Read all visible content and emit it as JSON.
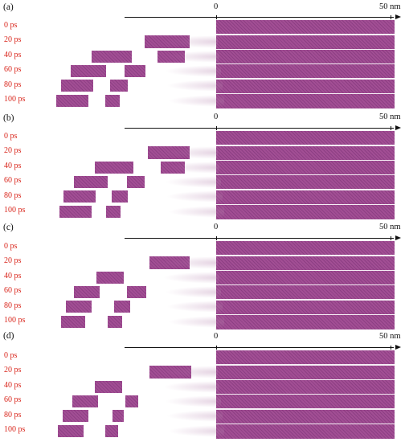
{
  "figure": {
    "panels": [
      {
        "label": "(a)",
        "axis": {
          "tick_zero": "0",
          "tick_end": "50 nm"
        },
        "rows": [
          "0 ps",
          "20 ps",
          "40 ps",
          "60 ps",
          "80 ps",
          "100 ps"
        ]
      },
      {
        "label": "(b)",
        "axis": {
          "tick_zero": "0",
          "tick_end": "50 nm"
        },
        "rows": [
          "0 ps",
          "20 ps",
          "40 ps",
          "60 ps",
          "80 ps",
          "100 ps"
        ]
      },
      {
        "label": "(c)",
        "axis": {
          "tick_zero": "0",
          "tick_end": "50 nm"
        },
        "rows": [
          "0 ps",
          "20 ps",
          "40 ps",
          "60 ps",
          "80 ps",
          "100 ps"
        ]
      },
      {
        "label": "(d)",
        "axis": {
          "tick_zero": "0",
          "tick_end": "50 nm"
        },
        "rows": [
          "0 ps",
          "20 ps",
          "40 ps",
          "60 ps",
          "80 ps",
          "100 ps"
        ]
      }
    ],
    "colors": {
      "material": "#a24e94",
      "material_dark": "#8c3f83",
      "particles": "#b07aa8",
      "label_red": "#d9261c",
      "axis": "#111111"
    }
  }
}
